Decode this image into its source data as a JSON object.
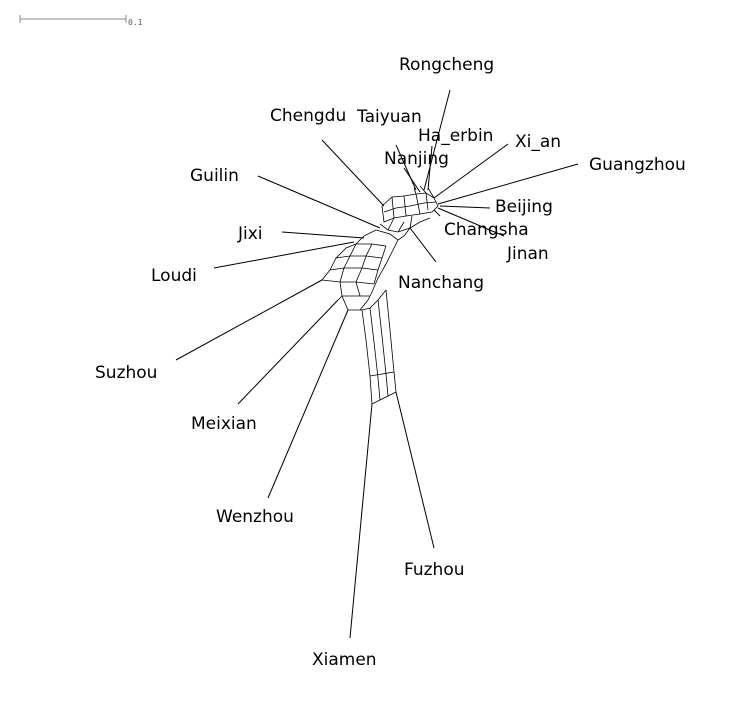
{
  "scale_bar": {
    "label": "0.1"
  },
  "taxa": [
    {
      "id": "rongcheng",
      "label": "Rongcheng"
    },
    {
      "id": "chengdu",
      "label": "Chengdu"
    },
    {
      "id": "taiyuan",
      "label": "Taiyuan"
    },
    {
      "id": "ha_erbin",
      "label": "Ha_erbin"
    },
    {
      "id": "xi_an",
      "label": "Xi_an"
    },
    {
      "id": "nanjing",
      "label": "Nanjing"
    },
    {
      "id": "guangzhou",
      "label": "Guangzhou"
    },
    {
      "id": "guilin",
      "label": "Guilin"
    },
    {
      "id": "beijing",
      "label": "Beijing"
    },
    {
      "id": "changsha",
      "label": "Changsha"
    },
    {
      "id": "jixi",
      "label": "Jixi"
    },
    {
      "id": "jinan",
      "label": "Jinan"
    },
    {
      "id": "loudi",
      "label": "Loudi"
    },
    {
      "id": "nanchang",
      "label": "Nanchang"
    },
    {
      "id": "suzhou",
      "label": "Suzhou"
    },
    {
      "id": "meixian",
      "label": "Meixian"
    },
    {
      "id": "wenzhou",
      "label": "Wenzhou"
    },
    {
      "id": "fuzhou",
      "label": "Fuzhou"
    },
    {
      "id": "xiamen",
      "label": "Xiamen"
    }
  ]
}
